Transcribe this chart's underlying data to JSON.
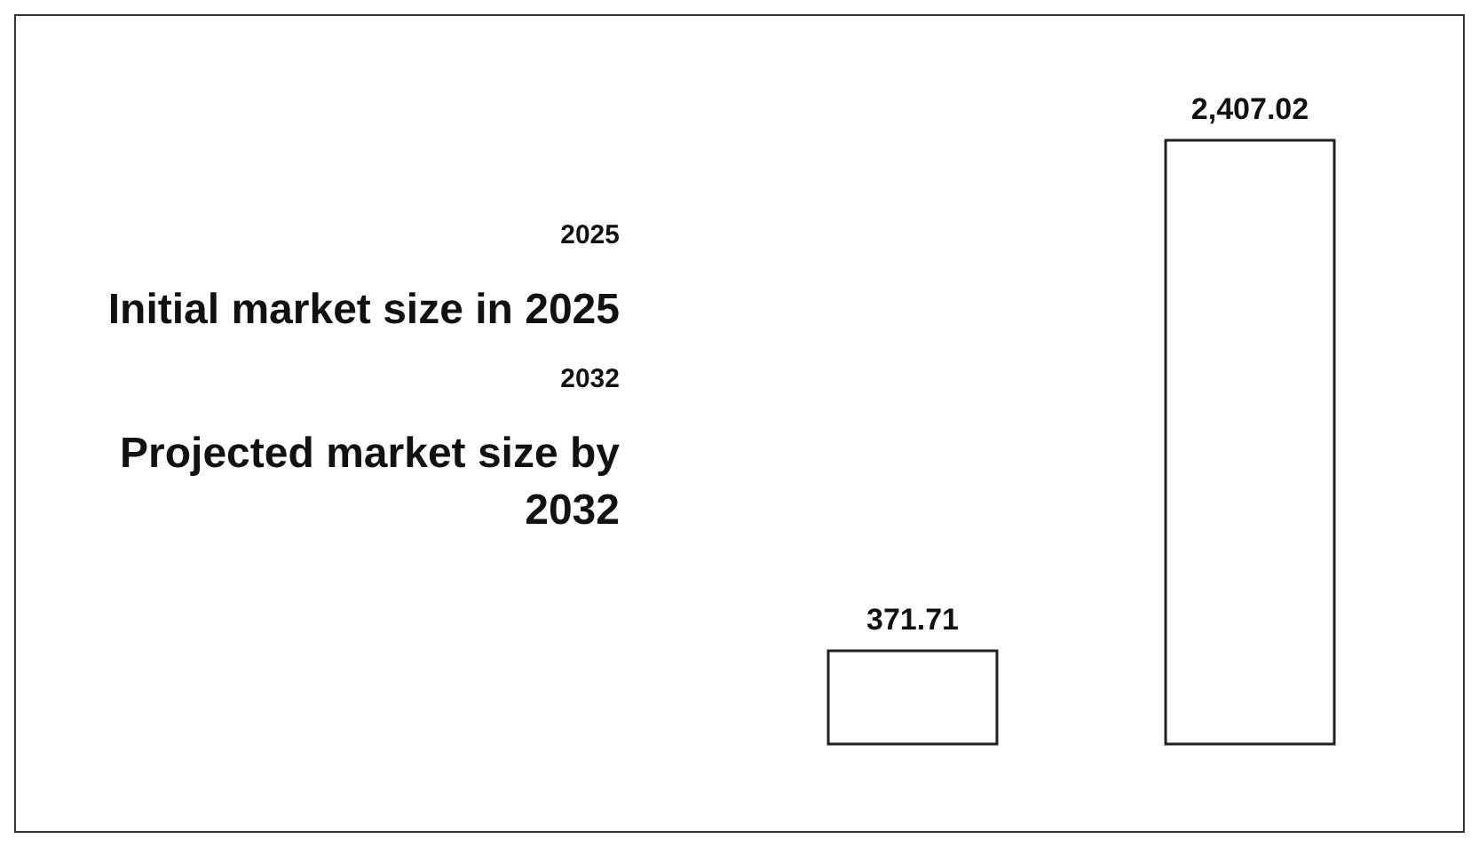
{
  "chart_data": {
    "type": "bar",
    "categories": [
      null,
      null
    ],
    "values": [
      371.71,
      2407.02
    ],
    "value_labels": [
      "371.71",
      "2,407.02"
    ],
    "color": "#ffffff",
    "annotations": [
      "2025",
      "Initial market size in 2025",
      "2032",
      "Projected market size by 2032"
    ]
  }
}
